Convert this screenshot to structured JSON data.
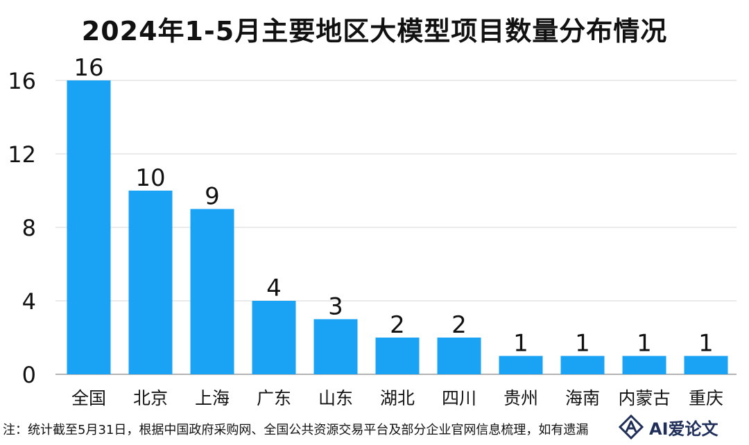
{
  "chart_data": {
    "type": "bar",
    "title": "2024年1-5月主要地区大模型项目数量分布情况",
    "categories": [
      "全国",
      "北京",
      "上海",
      "广东",
      "山东",
      "湖北",
      "四川",
      "贵州",
      "海南",
      "内蒙古",
      "重庆"
    ],
    "values": [
      16,
      10,
      9,
      4,
      3,
      2,
      2,
      1,
      1,
      1,
      1
    ],
    "ylim": [
      0,
      16
    ],
    "yticks": [
      0,
      4,
      8,
      12,
      16
    ],
    "xlabel": "",
    "ylabel": "",
    "grid": true,
    "bar_color": "#1aa3f5",
    "data_labels": true
  },
  "footnote": "注：统计截至5月31日，根据中国政府采购网、全国公共资源交易平台及部分企业官网信息梳理，如有遗漏",
  "brand": {
    "name": "AI爱论文",
    "icon": "brand-logo-icon",
    "color": "#1f2f5a"
  }
}
